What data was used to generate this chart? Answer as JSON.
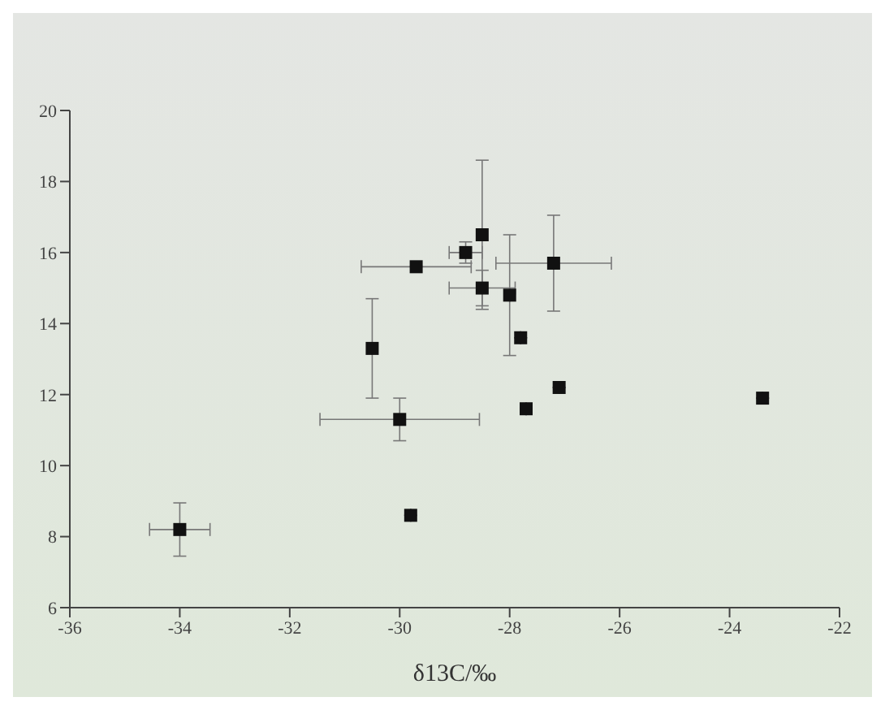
{
  "chart_data": {
    "type": "scatter",
    "xlabel": "δ13C/‰",
    "x": [
      -34.0,
      -29.8,
      -30.0,
      -30.5,
      -29.7,
      -28.8,
      -28.5,
      -28.5,
      -27.2,
      -28.0,
      -27.8,
      -27.1,
      -27.7,
      -23.4
    ],
    "series": [
      {
        "color": "#111111",
        "values": [
          8.2,
          8.6,
          11.3,
          13.3,
          15.6,
          16.0,
          16.5,
          15.0,
          15.7,
          14.8,
          13.6,
          12.2,
          11.6,
          11.9
        ],
        "errors": [
          0.75,
          null,
          0.6,
          1.4,
          null,
          0.3,
          2.1,
          0.5,
          1.35,
          1.7,
          null,
          null,
          null,
          null
        ],
        "xerrors": [
          0.55,
          null,
          1.45,
          null,
          1.0,
          0.3,
          null,
          0.6,
          1.05,
          null,
          null,
          null,
          null,
          null
        ]
      }
    ],
    "xlim": [
      -36,
      -22
    ],
    "xticks": [
      -36,
      -34,
      -32,
      -30,
      -28,
      -26,
      -24,
      -22
    ],
    "ylim": [
      6,
      20
    ],
    "yticks": [
      6,
      8,
      10,
      12,
      14,
      16,
      18,
      20
    ],
    "marker": "square"
  }
}
